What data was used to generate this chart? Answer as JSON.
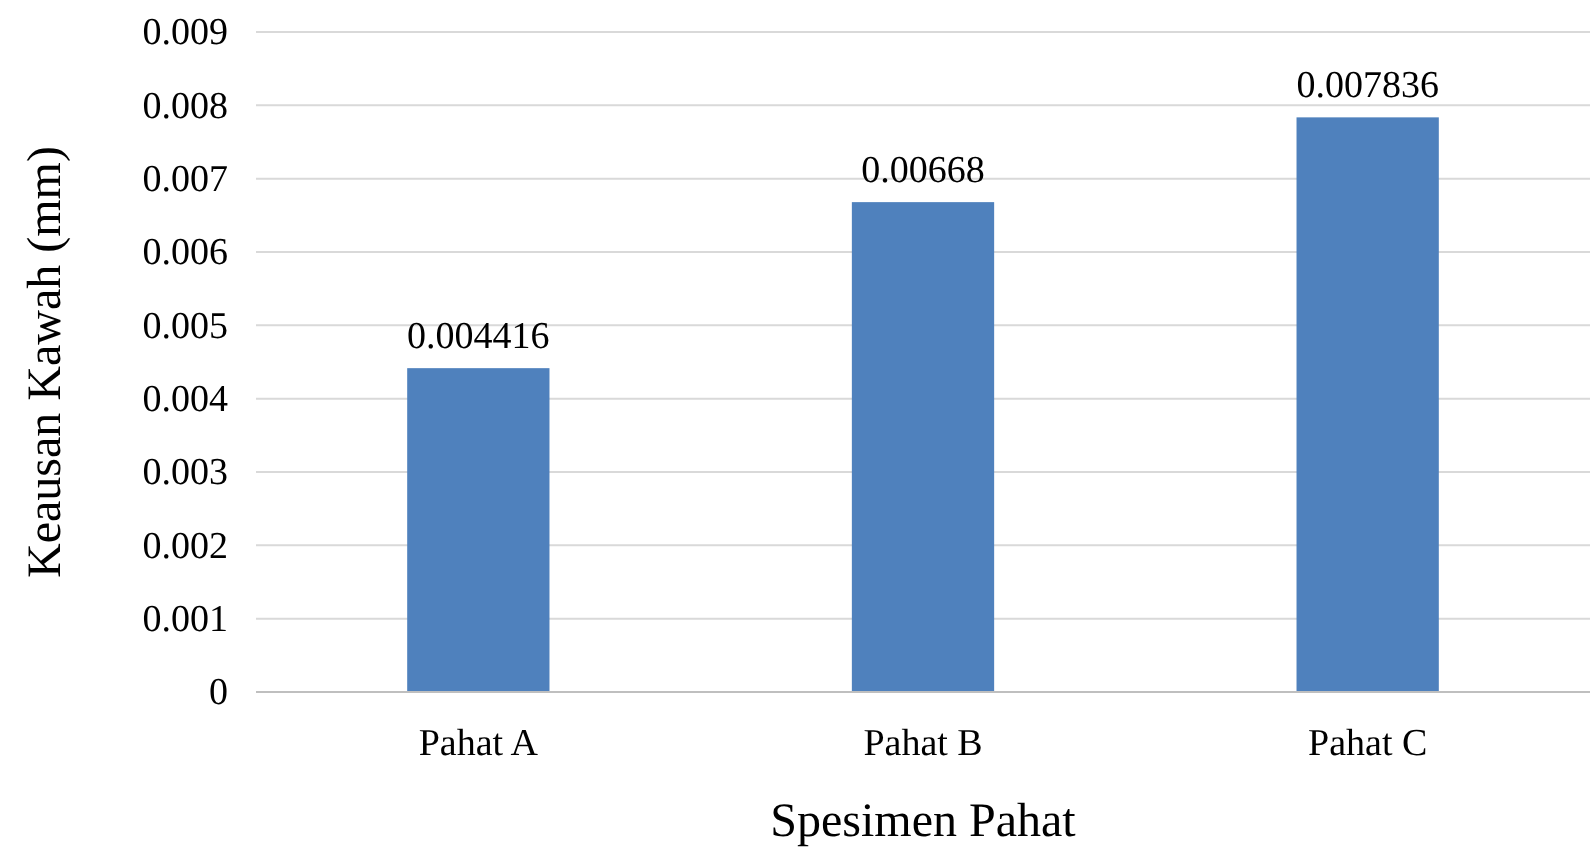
{
  "chart_data": {
    "type": "bar",
    "xlabel": "Spesimen Pahat",
    "ylabel": "Keausan Kawah (mm)",
    "categories": [
      "Pahat A",
      "Pahat B",
      "Pahat C"
    ],
    "values": [
      0.004416,
      0.00668,
      0.007836
    ],
    "color": "#4f81bd",
    "ylim": [
      0,
      0.009
    ],
    "yticks": [
      0,
      0.001,
      0.002,
      0.003,
      0.004,
      0.005,
      0.006,
      0.007,
      0.008,
      0.009
    ],
    "grid": "y",
    "data_labels": true
  }
}
